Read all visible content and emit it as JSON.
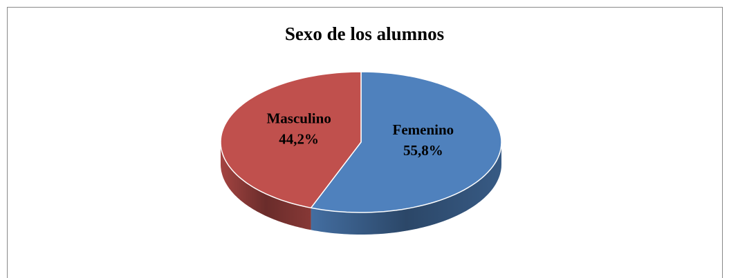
{
  "chart_data": {
    "type": "pie",
    "title": "Sexo de los alumnos",
    "categories": [
      "Femenino",
      "Masculino"
    ],
    "values": [
      55.8,
      44.2
    ],
    "value_labels": [
      "55,8%",
      "44,2%"
    ],
    "colors": [
      "#4f81bd",
      "#c0504d"
    ]
  }
}
